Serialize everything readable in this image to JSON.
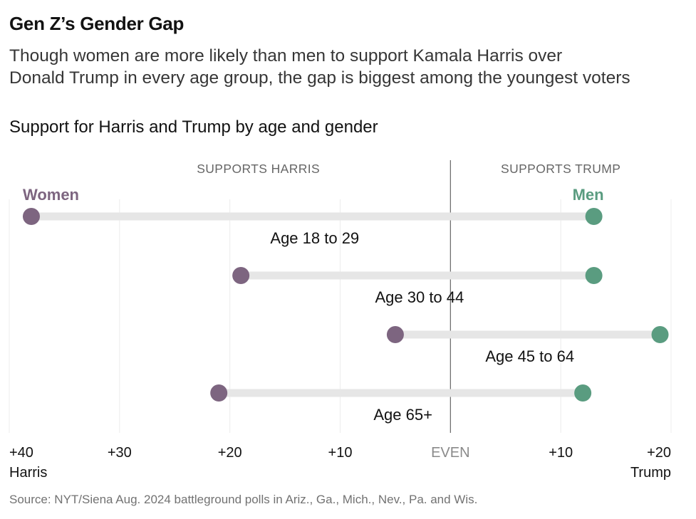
{
  "title": "Gen Z’s Gender Gap",
  "subtitle_lines": [
    "Though women are more likely than men to support Kamala Harris over",
    "Donald Trump in every age group, the gap is biggest among the youngest voters"
  ],
  "chart_title": "Support for Harris and Trump by age and gender",
  "source": "Source: NYT/Siena Aug. 2024 battleground polls in Ariz., Ga., Mich., Nev., Pa. and Wis.",
  "colors": {
    "women": "#7d6580",
    "men": "#5a9c80",
    "bar": "#e6e6e6",
    "grid": "#ececec",
    "zero": "#666666"
  },
  "chart_data": {
    "type": "dumbbell",
    "x_axis": {
      "range": [
        -40,
        20
      ],
      "ticks": [
        {
          "value": -40,
          "label": "+40",
          "sublabel": "Harris"
        },
        {
          "value": -30,
          "label": "+30"
        },
        {
          "value": -20,
          "label": "+20"
        },
        {
          "value": -10,
          "label": "+10"
        },
        {
          "value": 0,
          "label": "EVEN"
        },
        {
          "value": 10,
          "label": "+10"
        },
        {
          "value": 20,
          "label": "+20",
          "sublabel": "Trump"
        }
      ]
    },
    "side_labels": {
      "left": "SUPPORTS HARRIS",
      "right": "SUPPORTS TRUMP"
    },
    "series": [
      {
        "name": "Women",
        "color": "#7d6580"
      },
      {
        "name": "Men",
        "color": "#5a9c80"
      }
    ],
    "categories": [
      "Age 18 to 29",
      "Age 30 to 44",
      "Age 45 to 64",
      "Age 65+"
    ],
    "values": {
      "Women": [
        -38,
        -19,
        -5,
        -21
      ],
      "Men": [
        13,
        13,
        19,
        12
      ]
    },
    "grid": true
  }
}
